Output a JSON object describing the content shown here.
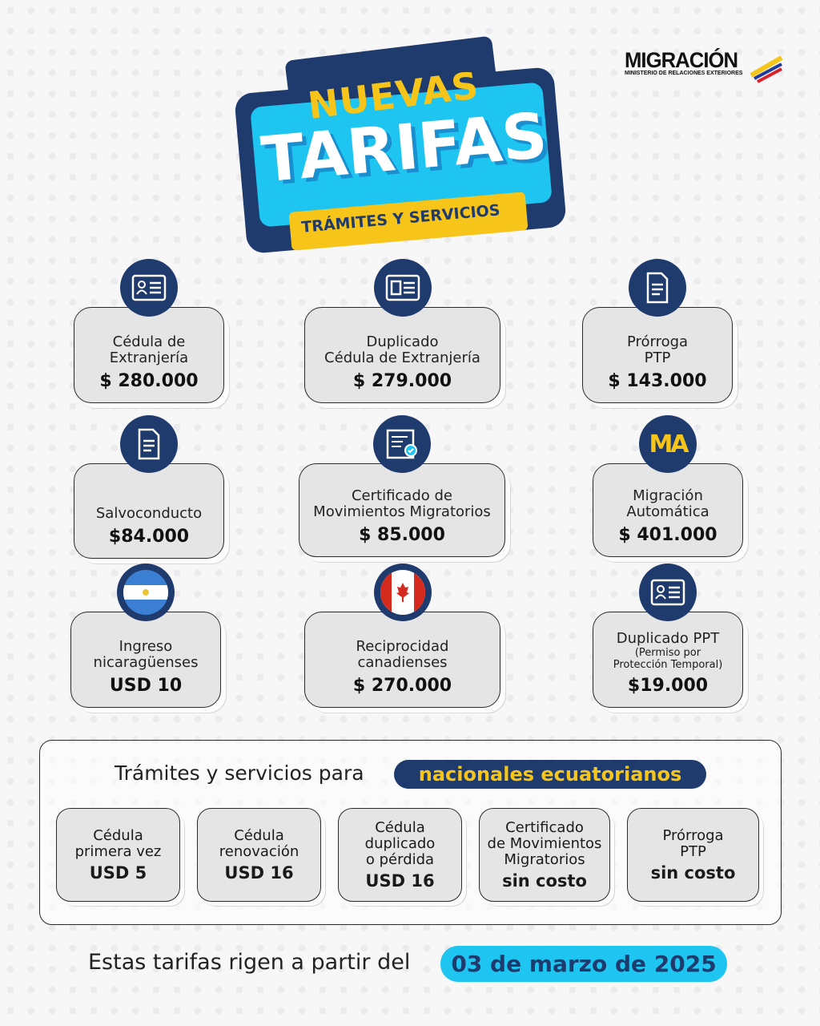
{
  "header": {
    "line1": "NUEVAS",
    "line2": "TARIFAS",
    "line3": "TRÁMITES Y SERVICIOS"
  },
  "logo": {
    "name": "MIGRACIÓN",
    "subtitle": "MINISTERIO DE RELACIONES EXTERIORES"
  },
  "colors": {
    "navy": "#1f3b6e",
    "cyan": "#1ec5f1",
    "yellow": "#f7c519"
  },
  "services": [
    {
      "label": "Cédula de\nExtranjería",
      "price": "$ 280.000",
      "icon": "id-card-icon"
    },
    {
      "label": "Duplicado\nCédula de Extranjería",
      "price": "$ 279.000",
      "icon": "id-card-duplicate-icon"
    },
    {
      "label": "Prórroga\nPTP",
      "price": "$ 143.000",
      "icon": "document-icon"
    },
    {
      "label": "Salvoconducto",
      "price": "$84.000",
      "icon": "document-icon"
    },
    {
      "label": "Certificado  de\nMovimientos Migratorios",
      "price": "$ 85.000",
      "icon": "certificate-icon"
    },
    {
      "label": "Migración\nAutomática",
      "price": "$ 401.000",
      "icon": "mia-logo-icon",
      "icon_text": "MA"
    },
    {
      "label": "Ingreso\nnicaragüenses",
      "price": "USD 10",
      "icon": "nicaragua-flag-icon"
    },
    {
      "label": "Reciprocidad\ncanadienses",
      "price": "$ 270.000",
      "icon": "canada-flag-icon"
    },
    {
      "label": "Duplicado PPT",
      "sublabel": "(Permiso por\nProtección Temporal)",
      "price": "$19.000",
      "icon": "id-card-icon"
    }
  ],
  "nationals": {
    "title": "Trámites y servicios para",
    "highlight": "nacionales ecuatorianos",
    "items": [
      {
        "label": "Cédula\nprimera vez",
        "price": "USD 5"
      },
      {
        "label": "Cédula\nrenovación",
        "price": "USD 16"
      },
      {
        "label": "Cédula\nduplicado\no pérdida",
        "price": "USD 16"
      },
      {
        "label": "Certificado\nde Movimientos\nMigratorios",
        "price": "sin costo"
      },
      {
        "label": "Prórroga\nPTP",
        "price": "sin costo"
      }
    ]
  },
  "footer": {
    "text": "Estas tarifas rigen a partir del",
    "date": "03 de marzo de 2025"
  }
}
